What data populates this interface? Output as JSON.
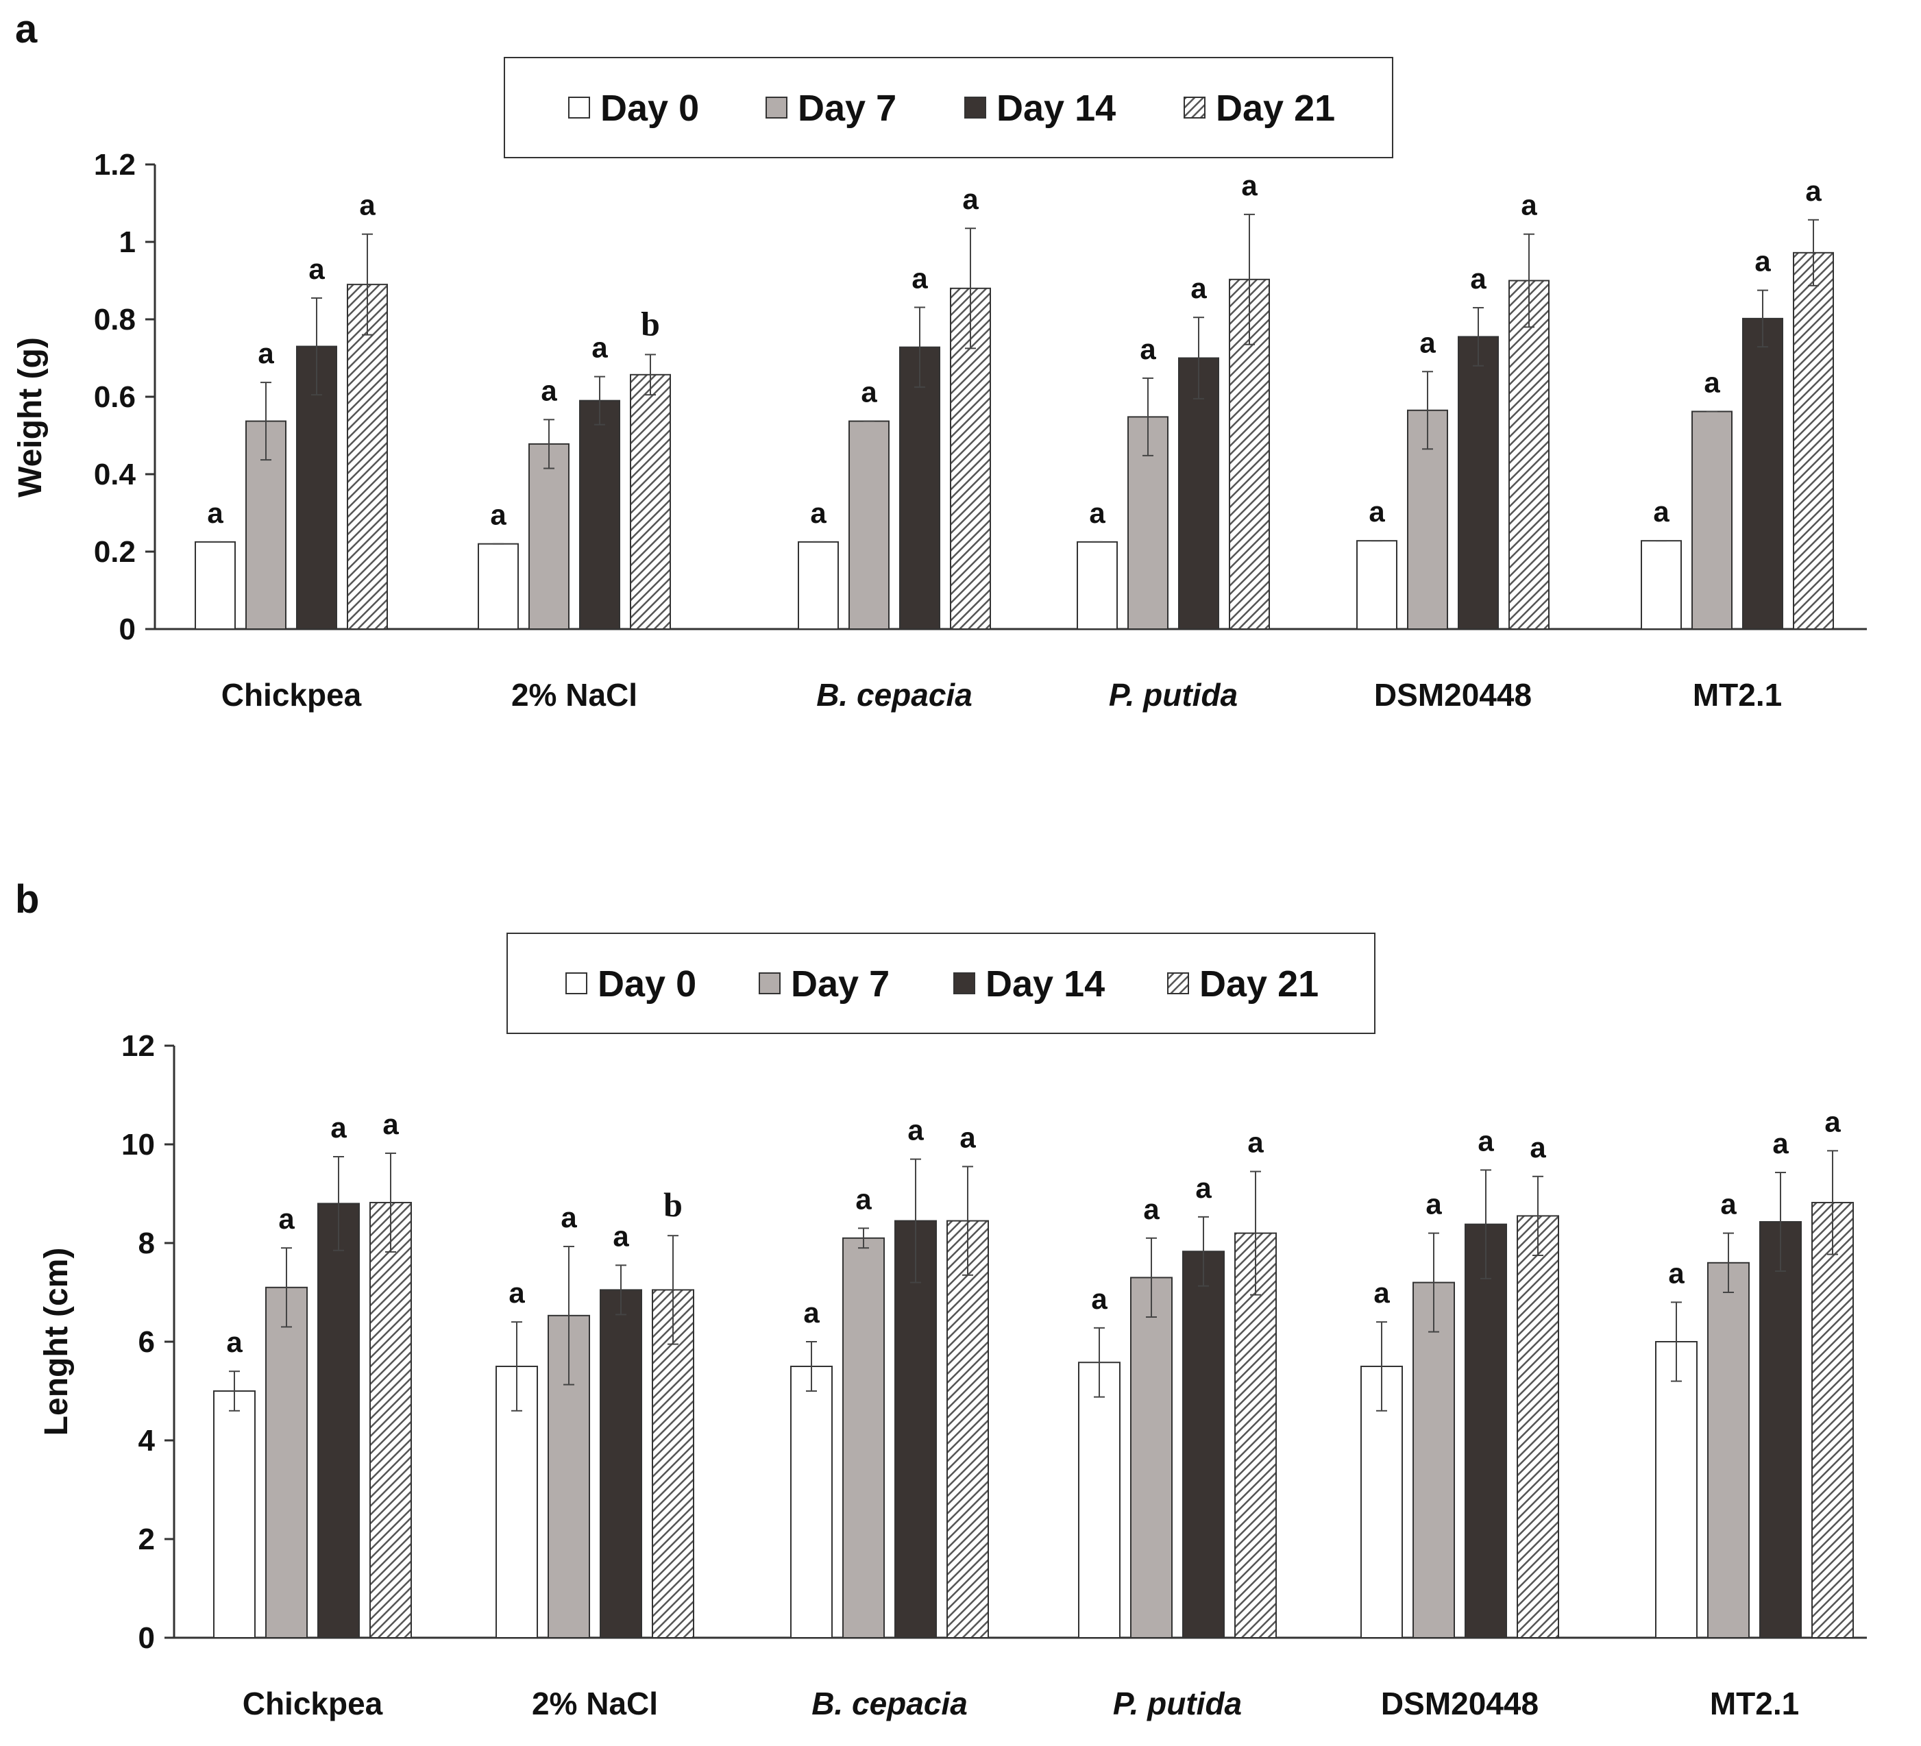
{
  "colors": {
    "day0": "#ffffff",
    "day7": "#b3adab",
    "day14": "#3a3432",
    "day21_hatch_bg": "#ffffff",
    "day21_hatch_line": "#555555",
    "bar_outline": "#333333"
  },
  "chart_data": [
    {
      "panel": "a",
      "type": "bar",
      "ylabel": "Weight (g)",
      "xlabel": "",
      "ylim": [
        0,
        1.2
      ],
      "yticks": [
        0,
        0.2,
        0.4,
        0.6,
        0.8,
        1,
        1.2
      ],
      "ytick_labels": [
        "0",
        "0.2",
        "0.4",
        "0.6",
        "0.8",
        "1",
        "1.2"
      ],
      "categories": [
        "Chickpea",
        "2% NaCl",
        "B. cepacia",
        "P. putida",
        "DSM20448",
        "MT2.1"
      ],
      "category_italic": [
        false,
        false,
        true,
        true,
        false,
        false
      ],
      "legend": [
        "Day 0",
        "Day 7",
        "Day 14",
        "Day 21"
      ],
      "series": [
        {
          "name": "Day 0",
          "values": [
            0.225,
            0.22,
            0.225,
            0.225,
            0.228,
            0.228
          ],
          "errors": [
            0,
            0,
            0,
            0,
            0,
            0
          ],
          "sig": [
            "a",
            "a",
            "a",
            "a",
            "a",
            "a"
          ]
        },
        {
          "name": "Day 7",
          "values": [
            0.537,
            0.478,
            0.537,
            0.548,
            0.565,
            0.562
          ],
          "errors": [
            0.1,
            0.063,
            0,
            0.1,
            0.1,
            0
          ],
          "sig": [
            "a",
            "a",
            "a",
            "a",
            "a",
            "a"
          ]
        },
        {
          "name": "Day 14",
          "values": [
            0.73,
            0.59,
            0.728,
            0.7,
            0.755,
            0.802
          ],
          "errors": [
            0.125,
            0.062,
            0.103,
            0.105,
            0.075,
            0.073
          ],
          "sig": [
            "a",
            "a",
            "a",
            "a",
            "a",
            "a"
          ]
        },
        {
          "name": "Day 21",
          "values": [
            0.89,
            0.657,
            0.88,
            0.903,
            0.9,
            0.972
          ],
          "errors": [
            0.13,
            0.052,
            0.155,
            0.168,
            0.12,
            0.085
          ],
          "sig": [
            "a",
            "b",
            "a",
            "a",
            "a",
            "a"
          ]
        }
      ]
    },
    {
      "panel": "b",
      "type": "bar",
      "ylabel": "Lenght (cm)",
      "xlabel": "",
      "ylim": [
        0,
        12
      ],
      "yticks": [
        0,
        2,
        4,
        6,
        8,
        10,
        12
      ],
      "ytick_labels": [
        "0",
        "2",
        "4",
        "6",
        "8",
        "10",
        "12"
      ],
      "categories": [
        "Chickpea",
        "2% NaCl",
        "B. cepacia",
        "P. putida",
        "DSM20448",
        "MT2.1"
      ],
      "category_italic": [
        false,
        false,
        true,
        true,
        false,
        false
      ],
      "legend": [
        "Day 0",
        "Day 7",
        "Day 14",
        "Day 21"
      ],
      "series": [
        {
          "name": "Day 0",
          "values": [
            5.0,
            5.5,
            5.5,
            5.58,
            5.5,
            6.0
          ],
          "errors": [
            0.4,
            0.9,
            0.5,
            0.7,
            0.9,
            0.8
          ],
          "sig": [
            "a",
            "a",
            "a",
            "a",
            "a",
            "a"
          ]
        },
        {
          "name": "Day 7",
          "values": [
            7.1,
            6.53,
            8.1,
            7.3,
            7.2,
            7.6
          ],
          "errors": [
            0.8,
            1.4,
            0.2,
            0.8,
            1.0,
            0.6
          ],
          "sig": [
            "a",
            "a",
            "a",
            "a",
            "a",
            "a"
          ]
        },
        {
          "name": "Day 14",
          "values": [
            8.8,
            7.05,
            8.45,
            7.83,
            8.38,
            8.43
          ],
          "errors": [
            0.95,
            0.5,
            1.25,
            0.7,
            1.1,
            1.0
          ],
          "sig": [
            "a",
            "a",
            "a",
            "a",
            "a",
            "a"
          ]
        },
        {
          "name": "Day 21",
          "values": [
            8.82,
            7.05,
            8.45,
            8.2,
            8.55,
            8.82
          ],
          "errors": [
            1.0,
            1.1,
            1.1,
            1.25,
            0.8,
            1.05
          ],
          "sig": [
            "a",
            "b",
            "a",
            "a",
            "a",
            "a"
          ]
        }
      ]
    }
  ]
}
